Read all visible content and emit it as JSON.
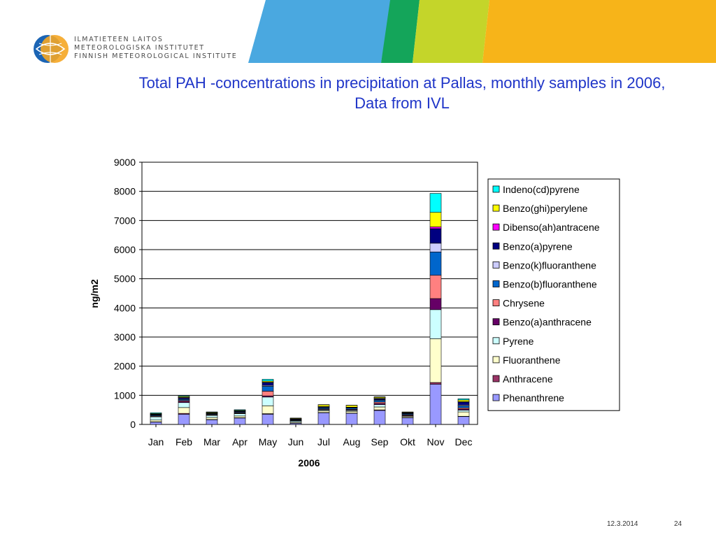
{
  "organization": {
    "line1": "ILMATIETEEN LAITOS",
    "line2": "METEOROLOGISKA INSTITUTET",
    "line3": "FINNISH METEOROLOGICAL INSTITUTE"
  },
  "slide_title": {
    "line1": "Total PAH -concentrations in precipitation at Pallas, monthly samples in 2006,",
    "line2": "Data from IVL"
  },
  "footer": {
    "date": "12.3.2014",
    "page": "24"
  },
  "colors": {
    "title": "#1f35c8",
    "banner_blue": "#4aa8e0",
    "banner_green": "#14a55a",
    "banner_lime": "#c4d52a",
    "banner_orange": "#f7b419"
  },
  "chart_data": {
    "type": "bar",
    "stacked": true,
    "xlabel": "2006",
    "ylabel": "ng/m2",
    "ylim": [
      0,
      9000
    ],
    "yticks": [
      0,
      1000,
      2000,
      3000,
      4000,
      5000,
      6000,
      7000,
      8000,
      9000
    ],
    "grid": true,
    "legend_position": "right",
    "categories": [
      "Jan",
      "Feb",
      "Mar",
      "Apr",
      "May",
      "Jun",
      "Jul",
      "Aug",
      "Sep",
      "Okt",
      "Nov",
      "Dec"
    ],
    "series": [
      {
        "name": "Phenanthrene",
        "color": "#9999ff",
        "values": [
          80,
          350,
          160,
          220,
          350,
          40,
          400,
          380,
          480,
          230,
          1380,
          270
        ]
      },
      {
        "name": "Anthracene",
        "color": "#993366",
        "values": [
          10,
          30,
          10,
          10,
          20,
          5,
          10,
          10,
          20,
          10,
          60,
          10
        ]
      },
      {
        "name": "Fluoranthene",
        "color": "#ffffcc",
        "values": [
          60,
          200,
          70,
          60,
          270,
          30,
          60,
          60,
          100,
          40,
          1500,
          150
        ]
      },
      {
        "name": "Pyrene",
        "color": "#ccffff",
        "values": [
          110,
          170,
          70,
          80,
          300,
          40,
          30,
          30,
          80,
          20,
          1000,
          60
        ]
      },
      {
        "name": "Benzo(a)anthracene",
        "color": "#660066",
        "values": [
          15,
          40,
          15,
          15,
          40,
          10,
          20,
          20,
          40,
          20,
          380,
          40
        ]
      },
      {
        "name": "Chrysene",
        "color": "#ff8080",
        "values": [
          20,
          30,
          20,
          20,
          160,
          10,
          20,
          20,
          50,
          20,
          800,
          40
        ]
      },
      {
        "name": "Benzo(b)fluoranthene",
        "color": "#0066cc",
        "values": [
          25,
          40,
          20,
          25,
          170,
          20,
          40,
          40,
          60,
          30,
          800,
          70
        ]
      },
      {
        "name": "Benzo(k)fluoranthene",
        "color": "#ccccff",
        "values": [
          10,
          20,
          10,
          10,
          30,
          10,
          10,
          10,
          20,
          10,
          300,
          30
        ]
      },
      {
        "name": "Benzo(a)pyrene",
        "color": "#000080",
        "values": [
          20,
          40,
          15,
          20,
          100,
          20,
          20,
          20,
          40,
          20,
          500,
          100
        ]
      },
      {
        "name": "Dibenso(ah)antracene",
        "color": "#ff00ff",
        "values": [
          3,
          5,
          3,
          3,
          10,
          3,
          3,
          3,
          5,
          3,
          60,
          10
        ]
      },
      {
        "name": "Benzo(ghi)perylene",
        "color": "#ffff00",
        "values": [
          20,
          30,
          20,
          20,
          40,
          20,
          60,
          60,
          40,
          20,
          500,
          60
        ]
      },
      {
        "name": "Indeno(cd)pyrene",
        "color": "#00ffff",
        "values": [
          27,
          25,
          17,
          22,
          60,
          12,
          7,
          7,
          15,
          7,
          650,
          40
        ]
      }
    ]
  }
}
